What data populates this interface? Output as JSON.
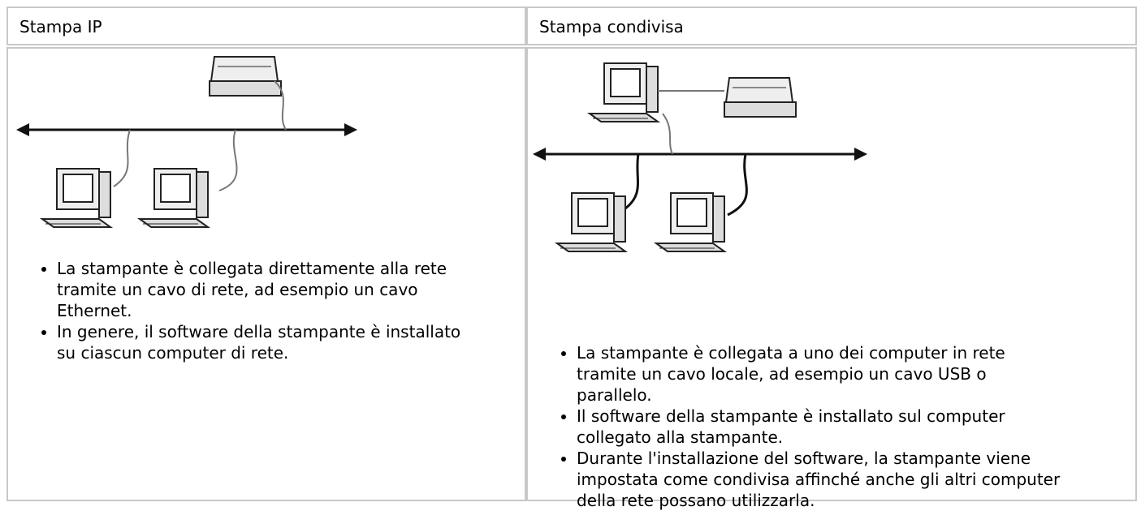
{
  "table": {
    "columns": [
      {
        "header": "Stampa IP",
        "items": [
          "La stampante è collegata direttamente alla rete tramite un cavo di rete, ad esempio un cavo Ethernet.",
          "In genere, il software della stampante è installato su ciascun computer di rete."
        ]
      },
      {
        "header": "Stampa condivisa",
        "items": [
          "La stampante è collegata a uno dei computer in rete tramite un cavo locale, ad esempio un cavo USB o parallelo.",
          "Il software della stampante è installato sul computer collegato alla stampante.",
          "Durante l'installazione del software, la stampante viene impostata come condivisa affinché anche gli altri computer della rete possano utilizzarla."
        ]
      }
    ]
  }
}
